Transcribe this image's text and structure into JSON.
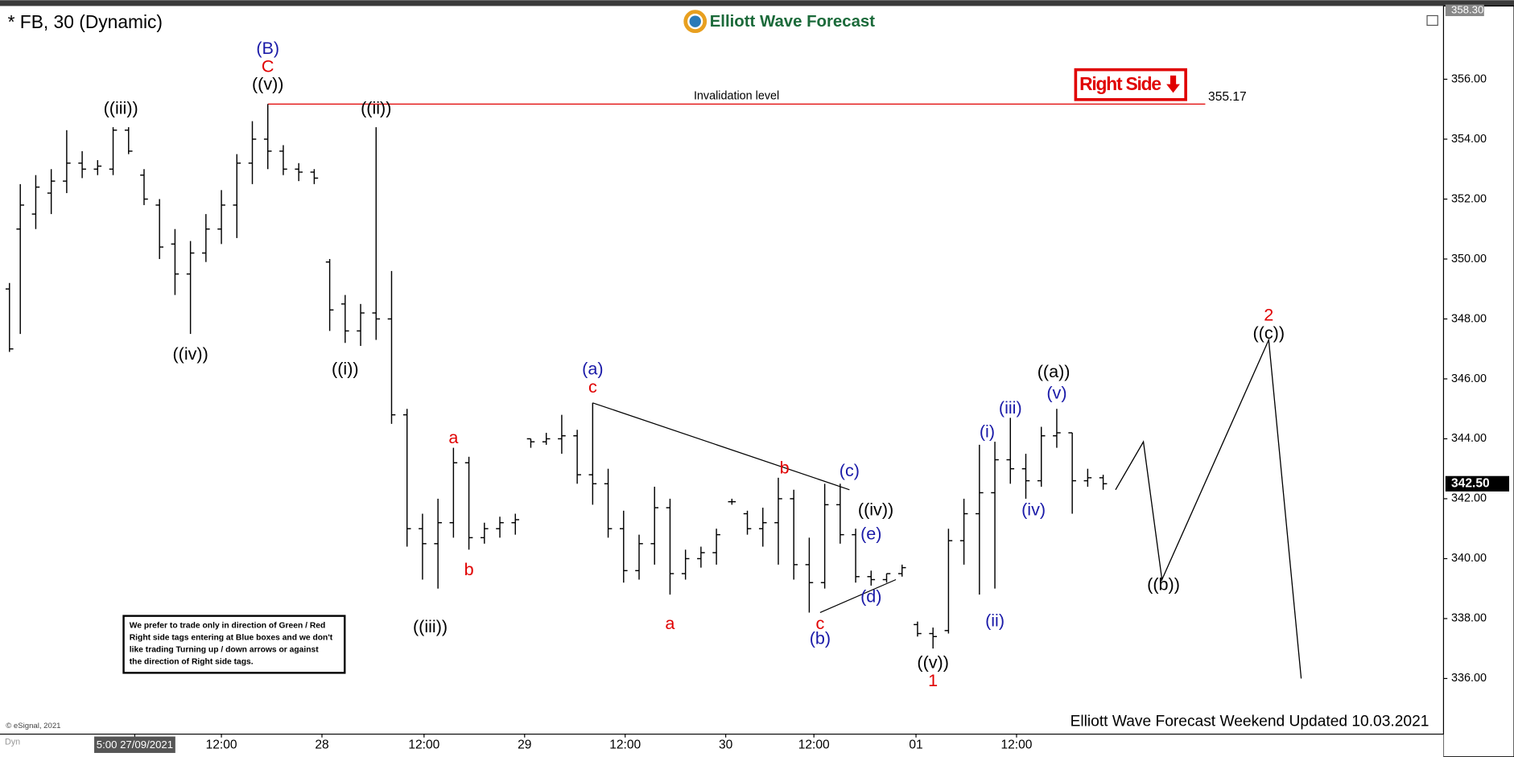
{
  "chart_data": {
    "type": "ohlc",
    "title": "* FB, 30 (Dynamic)",
    "brand": "Elliott Wave Forecast",
    "tag": "Right Side",
    "footer": "Elliott Wave Forecast Weekend Updated 10.03.2021",
    "copyright": "© eSignal, 2021",
    "corner_label": "Dyn",
    "notice": [
      "We prefer to trade only in direction of Green / Red",
      "Right side tags entering at Blue boxes and we don't",
      "like trading Turning up / down arrows or against",
      "the direction of Right side tags."
    ],
    "xlim": [
      0,
      93
    ],
    "ylim": [
      334.16,
      358.38
    ],
    "yticks": [
      {
        "value": 336,
        "label": "336.00"
      },
      {
        "value": 338,
        "label": "338.00"
      },
      {
        "value": 340,
        "label": "340.00"
      },
      {
        "value": 342,
        "label": "342.00"
      },
      {
        "value": 344,
        "label": "344.00"
      },
      {
        "value": 346,
        "label": "346.00"
      },
      {
        "value": 348,
        "label": "348.00"
      },
      {
        "value": 350,
        "label": "350.00"
      },
      {
        "value": 352,
        "label": "352.00"
      },
      {
        "value": 354,
        "label": "354.00"
      },
      {
        "value": 356,
        "label": "356.00"
      }
    ],
    "top_price": {
      "value": 358.3,
      "label": "358.30"
    },
    "last_price": {
      "value": 342.5,
      "label": "342.50"
    },
    "xticks": [
      {
        "value": 8.4,
        "label": "5:00 27/09/2021"
      },
      {
        "value": 14,
        "label": "12:00"
      },
      {
        "value": 20.5,
        "label": "28"
      },
      {
        "value": 27.1,
        "label": "12:00"
      },
      {
        "value": 33.6,
        "label": "29"
      },
      {
        "value": 40.1,
        "label": "12:00"
      },
      {
        "value": 46.6,
        "label": "30"
      },
      {
        "value": 52.3,
        "label": "12:00"
      },
      {
        "value": 58.9,
        "label": "01"
      },
      {
        "value": 65.4,
        "label": "12:00"
      }
    ],
    "color": "#000000",
    "bars": [
      [
        0.3,
        349,
        349.2,
        346.9,
        347
      ],
      [
        1,
        351,
        352.5,
        347.5,
        351.8
      ],
      [
        2,
        351.5,
        352.8,
        351,
        352.4
      ],
      [
        3,
        352.2,
        353,
        351.5,
        352.6
      ],
      [
        4,
        352.6,
        354.3,
        352.2,
        353.2
      ],
      [
        5,
        353.2,
        353.6,
        352.7,
        353
      ],
      [
        6,
        353,
        353.3,
        352.8,
        353.1
      ],
      [
        7,
        353,
        354.4,
        352.8,
        354.3
      ],
      [
        8,
        354.3,
        354.4,
        353.5,
        353.6
      ],
      [
        9,
        352.8,
        353,
        351.8,
        352
      ],
      [
        10,
        351.8,
        352,
        350,
        350.4
      ],
      [
        11,
        350.5,
        351,
        348.8,
        349.5
      ],
      [
        12,
        349.5,
        350.6,
        347.5,
        350.2
      ],
      [
        13,
        350.2,
        351.5,
        349.9,
        351
      ],
      [
        14,
        351,
        352.3,
        350.5,
        351.8
      ],
      [
        15,
        351.8,
        353.5,
        350.7,
        353.2
      ],
      [
        16,
        353.2,
        354.6,
        352.5,
        354
      ],
      [
        17,
        354,
        355.17,
        353,
        353.6
      ],
      [
        18,
        353.6,
        353.8,
        352.8,
        353
      ],
      [
        19,
        353,
        353.2,
        352.6,
        352.9
      ],
      [
        20,
        352.9,
        353,
        352.5,
        352.7
      ],
      [
        21,
        349.9,
        350,
        347.6,
        348.3
      ],
      [
        22,
        348.5,
        348.8,
        347.2,
        347.6
      ],
      [
        23,
        347.6,
        348.5,
        347.1,
        348.2
      ],
      [
        24,
        348.2,
        354.4,
        347.3,
        348
      ],
      [
        25,
        348,
        349.6,
        344.5,
        344.8
      ],
      [
        26,
        344.8,
        345,
        340.4,
        341
      ],
      [
        27,
        341,
        341.5,
        339.3,
        340.5
      ],
      [
        28,
        340.5,
        342,
        339,
        341.2
      ],
      [
        29,
        341.2,
        343.7,
        340.7,
        343.2
      ],
      [
        30,
        343.2,
        343.4,
        340.3,
        340.7
      ],
      [
        31,
        340.7,
        341.2,
        340.5,
        341
      ],
      [
        32,
        341,
        341.4,
        340.7,
        341.2
      ],
      [
        33,
        341.2,
        341.5,
        340.8,
        341.3
      ],
      [
        34,
        344,
        344,
        343.7,
        343.9
      ],
      [
        35,
        343.9,
        344.2,
        343.8,
        344
      ],
      [
        36,
        344,
        344.8,
        343.5,
        344.1
      ],
      [
        37,
        344.1,
        344.3,
        342.5,
        342.8
      ],
      [
        38,
        342.8,
        345.2,
        341.8,
        342.5
      ],
      [
        39,
        342.5,
        343,
        340.7,
        341
      ],
      [
        40,
        341,
        341.6,
        339.2,
        339.6
      ],
      [
        41,
        339.6,
        340.8,
        339.3,
        340.5
      ],
      [
        42,
        340.5,
        342.4,
        339.8,
        341.7
      ],
      [
        43,
        341.7,
        342,
        338.8,
        339.5
      ],
      [
        44,
        339.5,
        340.3,
        339.3,
        340
      ],
      [
        45,
        340,
        340.4,
        339.7,
        340.2
      ],
      [
        46,
        340.2,
        341,
        339.8,
        340.8
      ],
      [
        47,
        341.9,
        342,
        341.8,
        341.9
      ],
      [
        48,
        341.5,
        341.6,
        340.8,
        341
      ],
      [
        49,
        341,
        341.7,
        340.4,
        341.2
      ],
      [
        50,
        341.2,
        342.7,
        339.8,
        342
      ],
      [
        51,
        342,
        342.3,
        339.3,
        339.8
      ],
      [
        52,
        339.8,
        340.7,
        338.2,
        339.2
      ],
      [
        53,
        339.2,
        342.5,
        339,
        341.8
      ],
      [
        54,
        341.8,
        342.5,
        340.5,
        340.8
      ],
      [
        55,
        340.8,
        341,
        339.2,
        339.4
      ],
      [
        56,
        339.4,
        339.6,
        339.1,
        339.3
      ],
      [
        57,
        339.3,
        339.5,
        339.2,
        339.5
      ],
      [
        58,
        339.5,
        339.8,
        339.4,
        339.7
      ],
      [
        59,
        337.8,
        337.9,
        337.4,
        337.5
      ],
      [
        60,
        337.5,
        337.7,
        337,
        337.4
      ],
      [
        61,
        337.6,
        341,
        337.5,
        340.6
      ],
      [
        62,
        340.6,
        342,
        339.8,
        341.5
      ],
      [
        63,
        341.5,
        343.8,
        338.8,
        342.2
      ],
      [
        64,
        342.2,
        343.9,
        339,
        343.3
      ],
      [
        65,
        343.3,
        344.7,
        342.5,
        343
      ],
      [
        66,
        343,
        343.5,
        342,
        342.6
      ],
      [
        67,
        342.6,
        344.4,
        342.4,
        344.1
      ],
      [
        68,
        344.1,
        345,
        343.7,
        344.2
      ],
      [
        69,
        344.2,
        344.2,
        341.5,
        342.6
      ],
      [
        70,
        342.6,
        343,
        342.4,
        342.7
      ],
      [
        71,
        342.7,
        342.8,
        342.3,
        342.5
      ]
    ],
    "invalidation": {
      "label": "Invalidation level",
      "value": 355.17,
      "x": [
        17,
        77.6
      ]
    },
    "trendlines": [
      {
        "x": [
          38,
          54.6
        ],
        "y": [
          345.2,
          342.3
        ]
      },
      {
        "x": [
          52.7,
          57.6
        ],
        "y": [
          338.2,
          339.3
        ]
      }
    ],
    "projection": {
      "x": [
        71.8,
        73.6,
        74.8,
        81.7,
        83.8
      ],
      "y": [
        342.3,
        343.9,
        339.3,
        347.3,
        336.0
      ]
    },
    "annotations": [
      {
        "text": "(B)",
        "x": 17,
        "y": 357.0,
        "color": "#1a1aa8"
      },
      {
        "text": "C",
        "x": 17,
        "y": 356.4,
        "color": "#e00000"
      },
      {
        "text": "((v))",
        "x": 17,
        "y": 355.8,
        "color": "#000000"
      },
      {
        "text": "((iii))",
        "x": 7.5,
        "y": 355.0,
        "color": "#000000"
      },
      {
        "text": "((iv))",
        "x": 12,
        "y": 346.8,
        "color": "#000000"
      },
      {
        "text": "((ii))",
        "x": 24,
        "y": 355.0,
        "color": "#000000"
      },
      {
        "text": "((i))",
        "x": 22,
        "y": 346.3,
        "color": "#000000"
      },
      {
        "text": "((iii))",
        "x": 27.5,
        "y": 337.7,
        "color": "#000000"
      },
      {
        "text": "a",
        "x": 29,
        "y": 344.0,
        "color": "#e00000"
      },
      {
        "text": "b",
        "x": 30,
        "y": 339.6,
        "color": "#e00000"
      },
      {
        "text": "(a)",
        "x": 38,
        "y": 346.3,
        "color": "#1a1aa8"
      },
      {
        "text": "c",
        "x": 38,
        "y": 345.7,
        "color": "#e00000"
      },
      {
        "text": "a",
        "x": 43,
        "y": 337.8,
        "color": "#e00000"
      },
      {
        "text": "b",
        "x": 50.4,
        "y": 343.0,
        "color": "#e00000"
      },
      {
        "text": "c",
        "x": 52.7,
        "y": 337.8,
        "color": "#e00000"
      },
      {
        "text": "(b)",
        "x": 52.7,
        "y": 337.3,
        "color": "#1a1aa8"
      },
      {
        "text": "(c)",
        "x": 54.6,
        "y": 342.9,
        "color": "#1a1aa8"
      },
      {
        "text": "((iv))",
        "x": 56.3,
        "y": 341.6,
        "color": "#000000"
      },
      {
        "text": "(e)",
        "x": 56,
        "y": 340.8,
        "color": "#1a1aa8"
      },
      {
        "text": "(d)",
        "x": 56,
        "y": 338.7,
        "color": "#1a1aa8"
      },
      {
        "text": "((v))",
        "x": 60,
        "y": 336.5,
        "color": "#000000"
      },
      {
        "text": "1",
        "x": 60,
        "y": 335.9,
        "color": "#e00000"
      },
      {
        "text": "(i)",
        "x": 63.5,
        "y": 344.2,
        "color": "#1a1aa8"
      },
      {
        "text": "(ii)",
        "x": 64,
        "y": 337.9,
        "color": "#1a1aa8"
      },
      {
        "text": "(iii)",
        "x": 65,
        "y": 345.0,
        "color": "#1a1aa8"
      },
      {
        "text": "(iv)",
        "x": 66.5,
        "y": 341.6,
        "color": "#1a1aa8"
      },
      {
        "text": "(v)",
        "x": 68,
        "y": 345.5,
        "color": "#1a1aa8"
      },
      {
        "text": "((a))",
        "x": 67.8,
        "y": 346.2,
        "color": "#000000"
      },
      {
        "text": "((b))",
        "x": 74.9,
        "y": 339.1,
        "color": "#000000"
      },
      {
        "text": "((c))",
        "x": 81.7,
        "y": 347.5,
        "color": "#000000"
      },
      {
        "text": "2",
        "x": 81.7,
        "y": 348.1,
        "color": "#e00000"
      }
    ]
  }
}
